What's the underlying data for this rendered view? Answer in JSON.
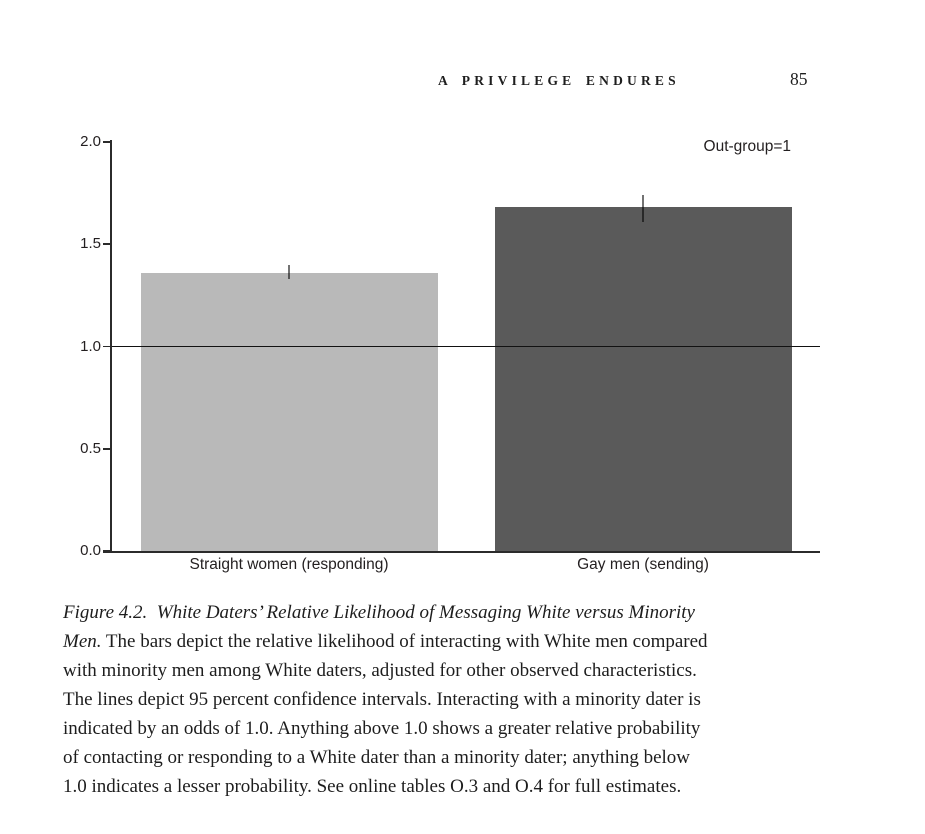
{
  "header": {
    "running_head": "A PRIVILEGE ENDURES",
    "page_number": "85"
  },
  "chart_data": {
    "type": "bar",
    "title": "",
    "xlabel": "",
    "ylabel": "",
    "categories": [
      "Straight women (responding)",
      "Gay men (sending)"
    ],
    "values": [
      1.36,
      1.68
    ],
    "ci95": [
      [
        1.33,
        1.4
      ],
      [
        1.61,
        1.74
      ]
    ],
    "reference_line": 1.0,
    "annotation": "Out-group=1",
    "ylim": [
      0.0,
      2.0
    ],
    "yticks": [
      0.0,
      0.5,
      1.0,
      1.5,
      2.0
    ],
    "ytick_labels": [
      "0.0",
      "0.5",
      "1.0",
      "1.5",
      "2.0"
    ],
    "bar_colors": [
      "#b9b9b9",
      "#5a5a5a"
    ],
    "axis_color": "#2b2b2b",
    "grid": false,
    "legend": "none"
  },
  "caption": {
    "lines": [
      {
        "segments": [
          {
            "italic": true,
            "text": "Figure 4.2.  White Daters’ Relative Likelihood of Messaging White versus Minority"
          }
        ]
      },
      {
        "segments": [
          {
            "italic": true,
            "text": "Men."
          },
          {
            "italic": false,
            "text": " The bars depict the relative likelihood of interacting with White men compared"
          }
        ]
      },
      {
        "segments": [
          {
            "italic": false,
            "text": "with minority men among White daters, adjusted for other observed characteristics."
          }
        ]
      },
      {
        "segments": [
          {
            "italic": false,
            "text": "The lines depict 95 percent confidence intervals. Interacting with a minority dater is"
          }
        ]
      },
      {
        "segments": [
          {
            "italic": false,
            "text": "indicated by an odds of 1.0. Anything above 1.0 shows a greater relative probability"
          }
        ]
      },
      {
        "segments": [
          {
            "italic": false,
            "text": "of contacting or responding to a White dater than a minority dater; anything below"
          }
        ]
      },
      {
        "segments": [
          {
            "italic": false,
            "text": "1.0 indicates a lesser probability. See online tables O.3 and O.4 for full estimates."
          }
        ]
      }
    ]
  }
}
